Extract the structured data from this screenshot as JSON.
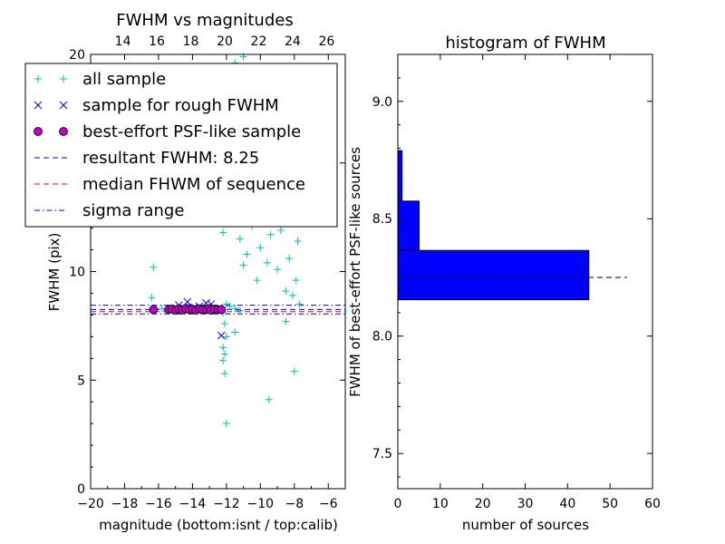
{
  "chart_data": [
    {
      "type": "scatter",
      "title": "FWHM vs magnitudes",
      "xlabel": "magnitude (bottom:isnt / top:calib)",
      "ylabel": "FWHM (pix)",
      "xlim": [
        -20,
        -5
      ],
      "ylim": [
        0,
        20
      ],
      "x_ticks": [
        -20,
        -18,
        -16,
        -14,
        -12,
        -10,
        -8,
        -6
      ],
      "x_tick_labels": [
        "−20",
        "−18",
        "−16",
        "−14",
        "−12",
        "−10",
        "−8",
        "−6"
      ],
      "y_ticks": [
        0,
        5,
        10,
        15,
        20
      ],
      "y_tick_labels": [
        "0",
        "5",
        "10",
        "15",
        "20"
      ],
      "top_axis": {
        "ticks_calib": [
          14,
          16,
          18,
          20,
          22,
          24,
          26
        ],
        "tick_labels": [
          "14",
          "16",
          "18",
          "20",
          "22",
          "24",
          "26"
        ],
        "calib_offset": 32.1
      },
      "grid": false,
      "legend_position": "top-left",
      "series": [
        {
          "name": "all sample",
          "marker": "plus",
          "color": "#00bfbf",
          "points": [
            [
              -16.3,
              10.2
            ],
            [
              -16.4,
              8.8
            ],
            [
              -15.8,
              8.3
            ],
            [
              -15.5,
              8.25
            ],
            [
              -15.1,
              8.3
            ],
            [
              -14.7,
              8.2
            ],
            [
              -14.3,
              8.35
            ],
            [
              -13.9,
              8.2
            ],
            [
              -13.5,
              8.25
            ],
            [
              -13.1,
              8.3
            ],
            [
              -12.8,
              8.2
            ],
            [
              -12.5,
              8.3
            ],
            [
              -12.2,
              8.1
            ],
            [
              -12.0,
              8.5
            ],
            [
              -11.8,
              8.4
            ],
            [
              -11.5,
              8.3
            ],
            [
              -11.2,
              8.2
            ],
            [
              -12.0,
              3.0
            ],
            [
              -12.1,
              5.3
            ],
            [
              -12.2,
              5.9
            ],
            [
              -12.1,
              6.2
            ],
            [
              -12.2,
              6.5
            ],
            [
              -12.0,
              7.0
            ],
            [
              -12.1,
              7.6
            ],
            [
              -9.5,
              4.1
            ],
            [
              -11.5,
              7.2
            ],
            [
              -11.2,
              11.5
            ],
            [
              -11.0,
              10.3
            ],
            [
              -10.8,
              10.8
            ],
            [
              -10.5,
              12.1
            ],
            [
              -10.2,
              9.6
            ],
            [
              -10.0,
              11.1
            ],
            [
              -9.8,
              12.9
            ],
            [
              -9.6,
              10.4
            ],
            [
              -9.4,
              11.7
            ],
            [
              -9.2,
              13.2
            ],
            [
              -9.0,
              10.1
            ],
            [
              -8.8,
              11.9
            ],
            [
              -8.6,
              13.6
            ],
            [
              -8.5,
              9.1
            ],
            [
              -8.4,
              12.7
            ],
            [
              -8.3,
              10.6
            ],
            [
              -8.2,
              14.1
            ],
            [
              -8.1,
              8.9
            ],
            [
              -8.0,
              12.3
            ],
            [
              -7.9,
              9.6
            ],
            [
              -7.8,
              11.4
            ],
            [
              -8.0,
              5.4
            ],
            [
              -8.5,
              7.7
            ],
            [
              -8.7,
              14.8
            ],
            [
              -8.4,
              15.4
            ],
            [
              -9.0,
              16.2
            ],
            [
              -11.0,
              19.9
            ],
            [
              -11.5,
              19.6
            ],
            [
              -8.8,
              19.4
            ],
            [
              -9.7,
              18.1
            ],
            [
              -10.4,
              16.6
            ],
            [
              -11.8,
              16.1
            ],
            [
              -12.2,
              11.8
            ],
            [
              -7.7,
              8.5
            ]
          ]
        },
        {
          "name": "sample for rough FWHM",
          "marker": "x",
          "color": "#0000ff",
          "points": [
            [
              -14.8,
              8.45
            ],
            [
              -14.3,
              8.6
            ],
            [
              -13.9,
              8.35
            ],
            [
              -13.6,
              8.4
            ],
            [
              -13.2,
              8.55
            ],
            [
              -12.9,
              8.5
            ],
            [
              -12.5,
              8.3
            ],
            [
              -12.3,
              7.05
            ]
          ]
        },
        {
          "name": "best-effort PSF-like sample",
          "marker": "circle",
          "color": "#bf00bf",
          "points": [
            [
              -16.3,
              8.25
            ],
            [
              -15.4,
              8.25
            ],
            [
              -15.2,
              8.28
            ],
            [
              -15.0,
              8.22
            ],
            [
              -14.8,
              8.27
            ],
            [
              -14.6,
              8.23
            ],
            [
              -14.4,
              8.3
            ],
            [
              -14.2,
              8.25
            ],
            [
              -14.0,
              8.26
            ],
            [
              -13.8,
              8.22
            ],
            [
              -13.6,
              8.28
            ],
            [
              -13.4,
              8.24
            ],
            [
              -13.2,
              8.25
            ],
            [
              -13.0,
              8.3
            ],
            [
              -12.9,
              8.22
            ],
            [
              -12.7,
              8.26
            ],
            [
              -12.5,
              8.24
            ],
            [
              -12.3,
              8.25
            ]
          ]
        }
      ],
      "hlines": [
        {
          "name": "resultant FWHM: 8.25",
          "value": 8.25,
          "color": "#0000ff",
          "style": "dashed"
        },
        {
          "name": "median FHWM of sequence",
          "value": 8.15,
          "color": "#ff0000",
          "style": "dashed"
        },
        {
          "name": "sigma range",
          "value": 8.45,
          "color": "#0000ff",
          "style": "dashdot"
        },
        {
          "value": 8.05,
          "color": "#0000ff",
          "style": "dashdot"
        }
      ]
    },
    {
      "type": "bar",
      "orientation": "horizontal",
      "title": "histogram of FWHM",
      "xlabel": "number of sources",
      "ylabel": "FWHM of best-effort PSF-like sources",
      "xlim": [
        0,
        60
      ],
      "ylim": [
        7.35,
        9.2
      ],
      "x_ticks": [
        0,
        10,
        20,
        30,
        40,
        50,
        60
      ],
      "x_tick_labels": [
        "0",
        "10",
        "20",
        "30",
        "40",
        "50",
        "60"
      ],
      "y_ticks": [
        7.5,
        8.0,
        8.5,
        9.0
      ],
      "y_tick_labels": [
        "7.5",
        "8.0",
        "8.5",
        "9.0"
      ],
      "grid": false,
      "bar_color": "#0000ff",
      "bins": [
        {
          "low": 8.155,
          "high": 8.365,
          "count": 45
        },
        {
          "low": 8.365,
          "high": 8.575,
          "count": 5
        },
        {
          "low": 8.575,
          "high": 8.79,
          "count": 1
        }
      ],
      "reference_line": {
        "value": 8.25,
        "x_end": 54,
        "style": "dashed",
        "color": "#000000"
      }
    }
  ]
}
